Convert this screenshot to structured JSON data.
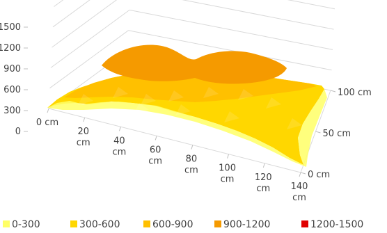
{
  "chart_data": {
    "type": "surface",
    "title": "",
    "z_ticks": [
      "0",
      "300",
      "600",
      "900",
      "1200",
      "1500"
    ],
    "x_ticks": [
      [
        "0 cm"
      ],
      [
        "20",
        "cm"
      ],
      [
        "40",
        "cm"
      ],
      [
        "60",
        "cm"
      ],
      [
        "80",
        "cm"
      ],
      [
        "100",
        "cm"
      ],
      [
        "120",
        "cm"
      ],
      [
        "140",
        "cm"
      ]
    ],
    "y_ticks": [
      "0 cm",
      "50 cm",
      "100 cm"
    ],
    "zlim": [
      0,
      1500
    ],
    "grid": true,
    "legend_position": "bottom",
    "bands": [
      {
        "label": "0-300",
        "color": "#FFFF66"
      },
      {
        "label": "300-600",
        "color": "#FFD700"
      },
      {
        "label": "600-900",
        "color": "#FFC000"
      },
      {
        "label": "900-1200",
        "color": "#F59A00"
      },
      {
        "label": "1200-1500",
        "color": "#E00000"
      }
    ],
    "surface": {
      "front_edge": [
        {
          "x": 0,
          "z": 330
        },
        {
          "x": 20,
          "z": 440
        },
        {
          "x": 40,
          "z": 520
        },
        {
          "x": 60,
          "z": 480
        },
        {
          "x": 80,
          "z": 420
        },
        {
          "x": 100,
          "z": 390
        },
        {
          "x": 120,
          "z": 340
        },
        {
          "x": 140,
          "z": 300
        }
      ],
      "peak_regions": [
        {
          "x": 55,
          "y": 60,
          "z": 1000
        },
        {
          "x": 105,
          "y": 60,
          "z": 970
        }
      ]
    }
  }
}
